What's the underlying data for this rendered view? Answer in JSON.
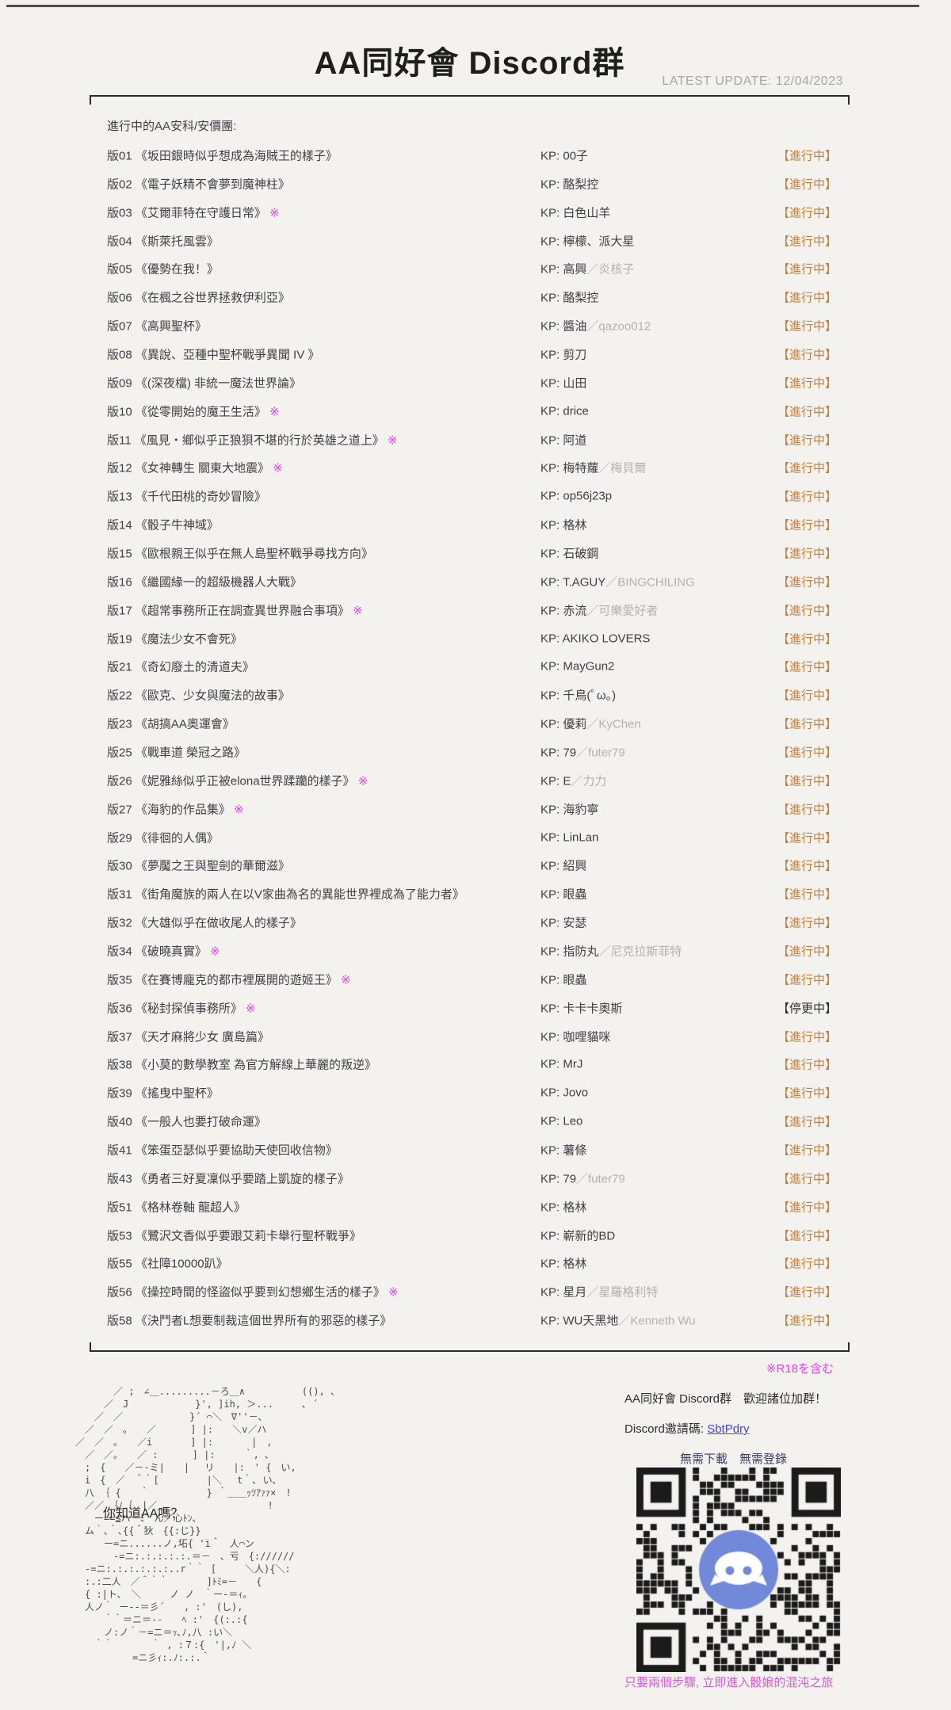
{
  "header": {
    "title": "AA同好會 Discord群",
    "latest_update": "LATEST UPDATE: 12/04/2023"
  },
  "list": {
    "section_label": "進行中的AA安科/安價團:",
    "kp_label": "KP: ",
    "r18_mark": "※",
    "rows": [
      {
        "no": "版01",
        "title": "《坂田銀時似乎想成為海賊王的樣子》",
        "r18": false,
        "kp": "00子",
        "kp_co": "",
        "status": "【進行中】"
      },
      {
        "no": "版02",
        "title": "《電子妖精不會夢到魔神柱》",
        "r18": false,
        "kp": "酪梨控",
        "kp_co": "",
        "status": "【進行中】"
      },
      {
        "no": "版03",
        "title": "《艾爾菲特在守護日常》",
        "r18": true,
        "kp": "白色山羊",
        "kp_co": "",
        "status": "【進行中】"
      },
      {
        "no": "版04",
        "title": "《斯萊托風雲》",
        "r18": false,
        "kp": "檸檬、派大星",
        "kp_co": "",
        "status": "【進行中】"
      },
      {
        "no": "版05",
        "title": "《優勢在我！》",
        "r18": false,
        "kp": "高興",
        "kp_co": "／炎核子",
        "status": "【進行中】"
      },
      {
        "no": "版06",
        "title": "《在楓之谷世界拯救伊利亞》",
        "r18": false,
        "kp": "酪梨控",
        "kp_co": "",
        "status": "【進行中】"
      },
      {
        "no": "版07",
        "title": "《高興聖杯》",
        "r18": false,
        "kp": "醬油",
        "kp_co": "／qazoo012",
        "status": "【進行中】"
      },
      {
        "no": "版08",
        "title": "《異說、亞種中聖杯戰爭異聞 IV 》",
        "r18": false,
        "kp": "剪刀",
        "kp_co": "",
        "status": "【進行中】"
      },
      {
        "no": "版09",
        "title": "《(深夜檔) 非統一魔法世界論》",
        "r18": false,
        "kp": "山田",
        "kp_co": "",
        "status": "【進行中】"
      },
      {
        "no": "版10",
        "title": "《從零開始的魔王生活》",
        "r18": true,
        "kp": "drice",
        "kp_co": "",
        "status": "【進行中】"
      },
      {
        "no": "版11",
        "title": "《風見・鄉似乎正狼狽不堪的行於英雄之道上》",
        "r18": true,
        "kp": "阿道",
        "kp_co": "",
        "status": "【進行中】"
      },
      {
        "no": "版12",
        "title": "《女神轉生 關東大地震》",
        "r18": true,
        "kp": "梅特蘿",
        "kp_co": "／梅貝爾",
        "status": "【進行中】"
      },
      {
        "no": "版13",
        "title": "《千代田桃的奇妙冒險》",
        "r18": false,
        "kp": "op56j23p",
        "kp_co": "",
        "status": "【進行中】"
      },
      {
        "no": "版14",
        "title": "《骰子牛神域》",
        "r18": false,
        "kp": "格林",
        "kp_co": "",
        "status": "【進行中】"
      },
      {
        "no": "版15",
        "title": "《歐根親王似乎在無人島聖杯戰爭尋找方向》",
        "r18": false,
        "kp": "石破鋼",
        "kp_co": "",
        "status": "【進行中】"
      },
      {
        "no": "版16",
        "title": "《繼國緣一的超級機器人大戰》",
        "r18": false,
        "kp": "T.AGUY",
        "kp_co": "／BINGCHILING",
        "status": "【進行中】"
      },
      {
        "no": "版17",
        "title": "《超常事務所正在調查異世界融合事項》",
        "r18": true,
        "kp": "赤流",
        "kp_co": "／可樂愛好者",
        "status": "【進行中】"
      },
      {
        "no": "版19",
        "title": "《魔法少女不會死》",
        "r18": false,
        "kp": "AKIKO LOVERS",
        "kp_co": "",
        "status": "【進行中】"
      },
      {
        "no": "版21",
        "title": "《奇幻廢土的清道夫》",
        "r18": false,
        "kp": "MayGun2",
        "kp_co": "",
        "status": "【進行中】"
      },
      {
        "no": "版22",
        "title": "《歐克、少女與魔法的故事》",
        "r18": false,
        "kp": "千鳥(ﾟω。)",
        "kp_co": "",
        "status": "【進行中】"
      },
      {
        "no": "版23",
        "title": "《胡搞AA奧運會》",
        "r18": false,
        "kp": "優莉",
        "kp_co": "／KyChen",
        "status": "【進行中】"
      },
      {
        "no": "版25",
        "title": "《戰車道 榮冠之路》",
        "r18": false,
        "kp": "79",
        "kp_co": "／futer79",
        "status": "【進行中】"
      },
      {
        "no": "版26",
        "title": "《妮雅絲似乎正被elona世界蹂躪的樣子》",
        "r18": true,
        "kp": "E",
        "kp_co": "／力力",
        "status": "【進行中】"
      },
      {
        "no": "版27",
        "title": "《海豹的作品集》",
        "r18": true,
        "kp": "海豹寧",
        "kp_co": "",
        "status": "【進行中】"
      },
      {
        "no": "版29",
        "title": "《徘徊的人偶》",
        "r18": false,
        "kp": "LinLan",
        "kp_co": "",
        "status": "【進行中】"
      },
      {
        "no": "版30",
        "title": "《夢魘之王與聖劍的華爾滋》",
        "r18": false,
        "kp": "紹興",
        "kp_co": "",
        "status": "【進行中】"
      },
      {
        "no": "版31",
        "title": "《街角魔族的兩人在以V家曲為名的異能世界裡成為了能力者》",
        "r18": false,
        "kp": "眼蟲",
        "kp_co": "",
        "status": "【進行中】"
      },
      {
        "no": "版32",
        "title": "《大雄似乎在做收尾人的樣子》",
        "r18": false,
        "kp": "安瑟",
        "kp_co": "",
        "status": "【進行中】"
      },
      {
        "no": "版34",
        "title": "《破曉真實》",
        "r18": true,
        "kp": "指防丸",
        "kp_co": "／尼克拉斯菲特",
        "status": "【進行中】"
      },
      {
        "no": "版35",
        "title": "《在賽博龐克的都市裡展開的遊姬王》",
        "r18": true,
        "kp": "眼蟲",
        "kp_co": "",
        "status": "【進行中】"
      },
      {
        "no": "版36",
        "title": "《秘封探偵事務所》",
        "r18": true,
        "kp": "卡卡卡奧斯",
        "kp_co": "",
        "status": "【停更中】"
      },
      {
        "no": "版37",
        "title": "《天才麻將少女 廣島篇》",
        "r18": false,
        "kp": "咖哩貓咪",
        "kp_co": "",
        "status": "【進行中】"
      },
      {
        "no": "版38",
        "title": "《小莫的數學教室 為官方解線上華麗的叛逆》",
        "r18": false,
        "kp": "MrJ",
        "kp_co": "",
        "status": "【進行中】"
      },
      {
        "no": "版39",
        "title": "《搖曳中聖杯》",
        "r18": false,
        "kp": "Jovo",
        "kp_co": "",
        "status": "【進行中】"
      },
      {
        "no": "版40",
        "title": "《一般人也要打破命運》",
        "r18": false,
        "kp": "Leo",
        "kp_co": "",
        "status": "【進行中】"
      },
      {
        "no": "版41",
        "title": "《笨蛋亞瑟似乎要協助天使回收信物》",
        "r18": false,
        "kp": "薯條",
        "kp_co": "",
        "status": "【進行中】"
      },
      {
        "no": "版43",
        "title": "《勇者三好夏凜似乎要踏上凱旋的樣子》",
        "r18": false,
        "kp": "79",
        "kp_co": "／futer79",
        "status": "【進行中】"
      },
      {
        "no": "版51",
        "title": "《格林卷軸 龍超人》",
        "r18": false,
        "kp": "格林",
        "kp_co": "",
        "status": "【進行中】"
      },
      {
        "no": "版53",
        "title": "《鷺沢文香似乎要跟艾莉卡舉行聖杯戰爭》",
        "r18": false,
        "kp": "嶄新的BD",
        "kp_co": "",
        "status": "【進行中】"
      },
      {
        "no": "版55",
        "title": "《社障10000趴》",
        "r18": false,
        "kp": "格林",
        "kp_co": "",
        "status": "【進行中】"
      },
      {
        "no": "版56",
        "title": "《操控時間的怪盜似乎要到幻想鄉生活的樣子》",
        "r18": true,
        "kp": "星月",
        "kp_co": "／星羅格利特",
        "status": "【進行中】"
      },
      {
        "no": "版58",
        "title": "《決鬥者L想要制裁這個世界所有的邪惡的樣子》",
        "r18": false,
        "kp": "WU天黑地",
        "kp_co": "／Kenneth Wu",
        "status": "【進行中】"
      }
    ]
  },
  "footer": {
    "r18_note": "※R18を含む",
    "art_caption": "你知道AA嗎？",
    "ascii_art": [
      "　　　　／ ;　∠＿.........－ろ＿∧　　　　　　((), 、",
      "　　　／　J　　　　　　　}', ]ih, ＞...　　　､ ´",
      "　　／　／　　　　　　　}´ ⌒＼　∇''－､",
      "　／　／　｡　　／　　　 ] |:　　＼v／ハ",
      "／　／　｡　　／i　　　　] |:　　　　|　,",
      "　／　／｡　　／ :　　　 ] |:　　　｀, ､",
      "　;　{　　／－-ミ|　　|　 リ　　|:　' {　い,",
      "　i　{　／　＾｀[　　　　　|＼　 t｀､ い､",
      "　八 ｛ {　　｀　　　　　　} ｀＿＿ｯﾂｱｧｧ×　!",
      "　／／　｛ﾉ｛　|／＿_　　　　　　　　　　!",
      "　　ー==≦ハ　ﾐ゛ん／心ﾄﾝ､",
      "　ム｀､｀､{{＾狄　{{:じ}}",
      "　　　ー=ニ......ノ,坧{ 'i＾　人⌒ン",
      "　　　　-=ニ:.:.:.:.:.＝－　、亏　{://////",
      "　-=ニ:.:.:.:.:.:..r｀｀ [　　　＼人){＼:",
      "　:.:二人　／＾｀｀　　　　]ﾄﾐ=－　　{",
      "　{ :|ト､　＼　　　ノ ノ　｀ー-＝ｨ｡",
      "　人ノ｀ ー--＝彡´　　, :'　(し),",
      "　　　｀｀＝ニ＝--　　ﾍ :'　{(:.:{",
      "　　　ノ:ノ｀－=ニ＝ｯ､ﾉ,八 :い＼",
      "　　｀｀　　　　｀ , :７:{　'|,ﾉ ＼",
      "　　　　　　=ニ彡ｨ:.ﾉ:.:.｀"
    ],
    "group_invite": "AA同好會 Discord群　歡迎諸位加群！",
    "invite_code_label": "Discord邀請碼: ",
    "invite_code": "SbtPdry",
    "no_requirements": "無需下載　無需登錄",
    "qr_caption": "只要兩個步驟, 立即進入骰娘的混沌之旅"
  },
  "colors": {
    "background": "#f3f2ee",
    "status_active": "#c67e3e",
    "status_paused": "#2e2e31",
    "r18_magenta": "#ee3cee",
    "kp_co_gray": "#b3b1ae",
    "update_gray": "#a9a7a3",
    "link_blue": "#4545d0",
    "no_req_indigo": "#3c3c6e",
    "caption_pink": "#cf5ecf",
    "discord_blurple": "#7289da"
  }
}
